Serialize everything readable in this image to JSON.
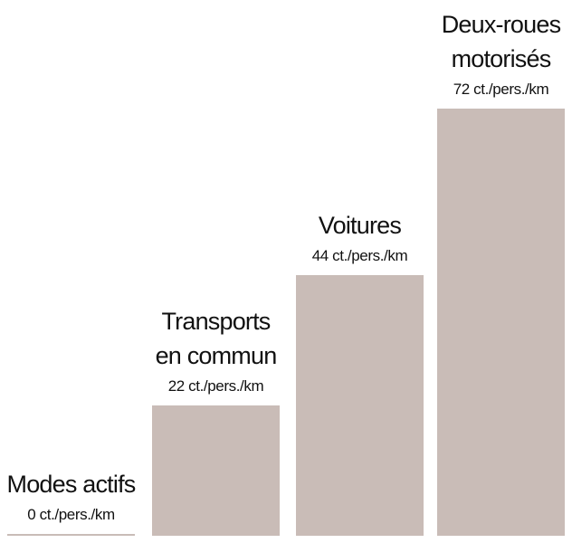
{
  "chart_data": {
    "type": "bar",
    "categories": [
      "Modes actifs",
      "Transports en commun",
      "Voitures",
      "Deux-roues motorisés"
    ],
    "values": [
      0,
      22,
      44,
      72
    ],
    "value_labels": [
      "0 ct./pers./km",
      "22 ct./pers./km",
      "44 ct./pers./km",
      "72 ct./pers./km"
    ],
    "color": "#c9bcb7"
  }
}
